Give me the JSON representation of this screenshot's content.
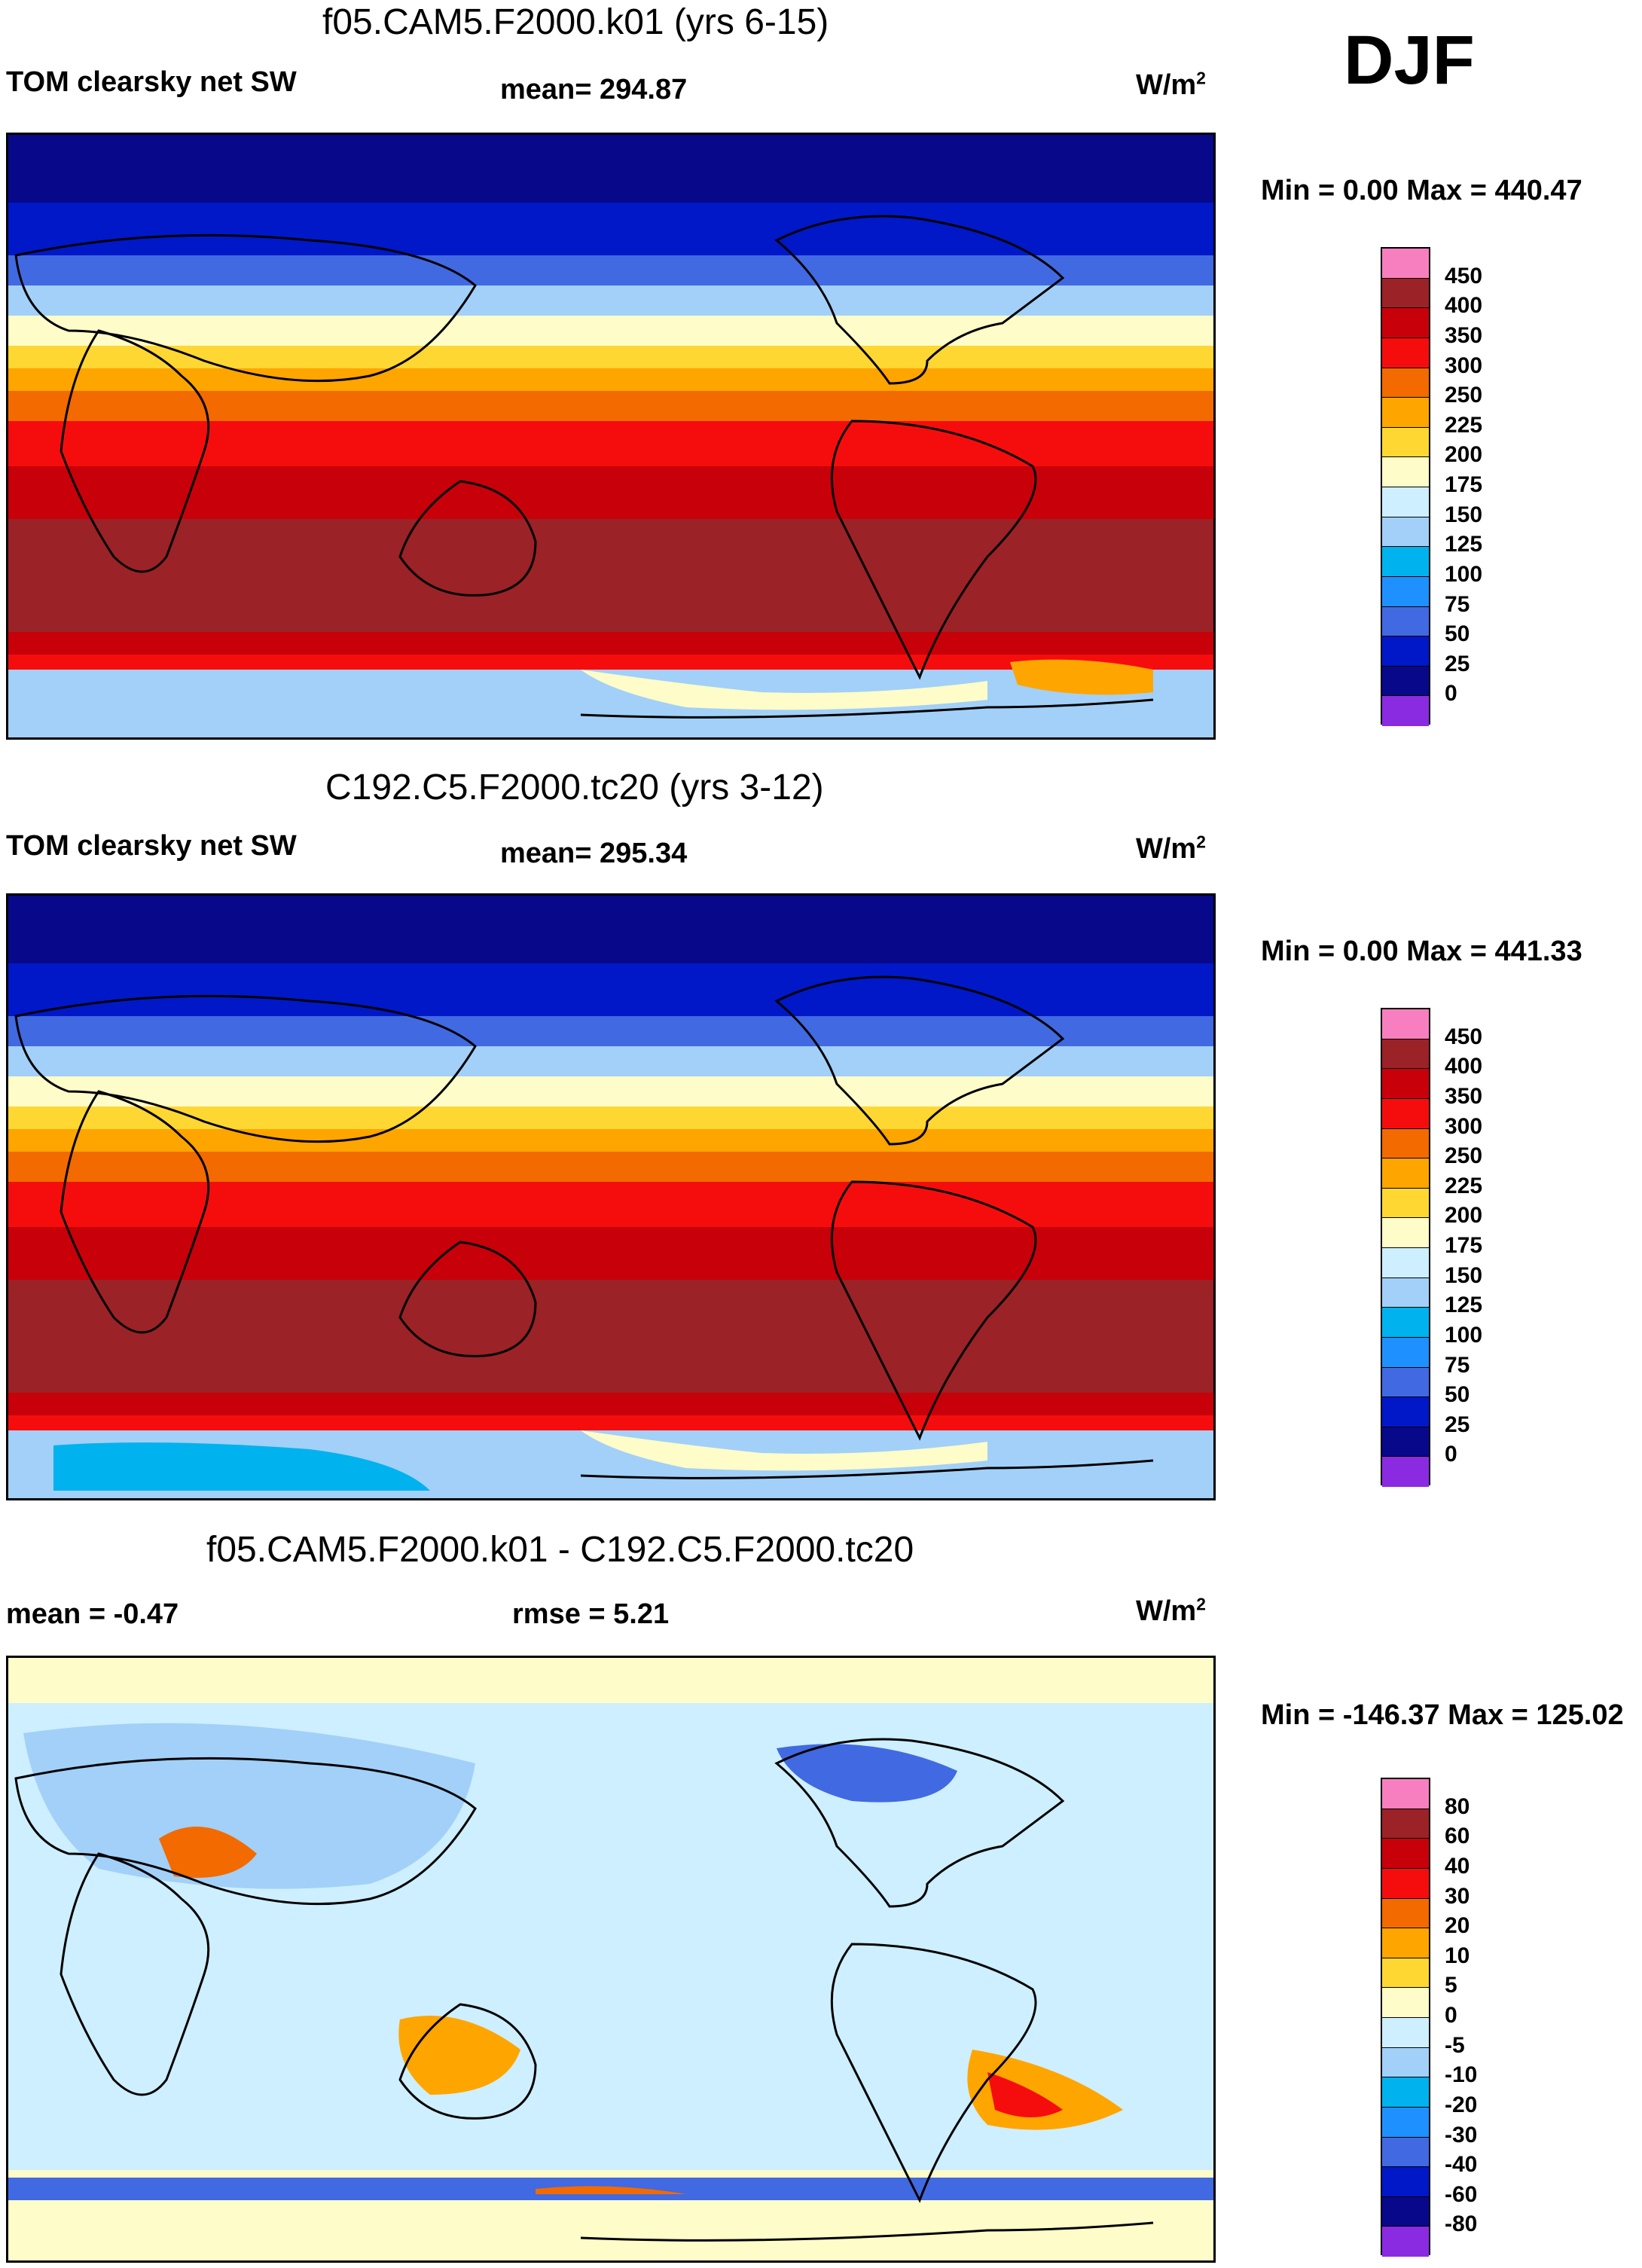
{
  "season": "DJF",
  "panels": [
    {
      "title": "f05.CAM5.F2000.k01 (yrs 6-15)",
      "left_label": "TOM clearsky net SW",
      "mid_label": "mean= 294.87",
      "units": "W/m",
      "units_sup": "2",
      "minmax": "Min =   0.00 Max = 440.47",
      "kind": "field"
    },
    {
      "title": "C192.C5.F2000.tc20 (yrs 3-12)",
      "left_label": "TOM clearsky net SW",
      "mid_label": "mean= 295.34",
      "units": "W/m",
      "units_sup": "2",
      "minmax": "Min =   0.00 Max = 441.33",
      "kind": "field"
    },
    {
      "title": "f05.CAM5.F2000.k01 - C192.C5.F2000.tc20",
      "left_label": "mean =  -0.47",
      "mid_label": "rmse =   5.21",
      "units": "W/m",
      "units_sup": "2",
      "minmax": "Min = -146.37 Max = 125.02",
      "kind": "diff"
    }
  ],
  "colorbars": {
    "field": {
      "levels": [
        "450",
        "400",
        "350",
        "300",
        "250",
        "225",
        "200",
        "175",
        "150",
        "125",
        "100",
        "75",
        "50",
        "25",
        "0"
      ],
      "colors": [
        "#f77fbf",
        "#9b2226",
        "#c8000a",
        "#f50d0d",
        "#f26a00",
        "#ffa500",
        "#fed733",
        "#fefcc8",
        "#cdefff",
        "#a2d0f8",
        "#00b2ee",
        "#1e90ff",
        "#4169e1",
        "#0018c8",
        "#08088a",
        "#8a2be2"
      ]
    },
    "diff": {
      "levels": [
        "80",
        "60",
        "40",
        "30",
        "20",
        "10",
        "5",
        "0",
        "-5",
        "-10",
        "-20",
        "-30",
        "-40",
        "-60",
        "-80"
      ],
      "colors": [
        "#f77fbf",
        "#9b2226",
        "#c8000a",
        "#f50d0d",
        "#f26a00",
        "#ffa500",
        "#fed733",
        "#fefcc8",
        "#cdefff",
        "#a2d0f8",
        "#00b2ee",
        "#1e90ff",
        "#4169e1",
        "#0018c8",
        "#08088a",
        "#8a2be2"
      ]
    }
  }
}
